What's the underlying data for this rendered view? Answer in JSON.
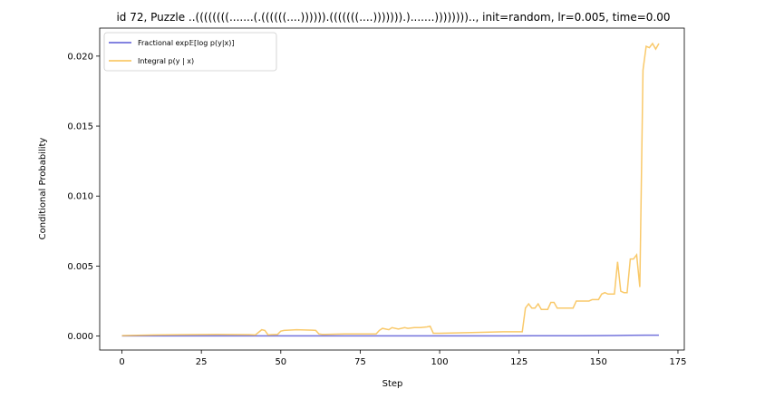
{
  "chart_data": {
    "type": "line",
    "title": "id 72, Puzzle ..((((((((.......(.((((((....)))))).(((((((....))))))).).......))))))))..,  init=random, lr=0.005, time=0.00",
    "xlabel": "Step",
    "ylabel": "Conditional Probability",
    "xlim": [
      -7,
      177
    ],
    "ylim": [
      -0.001,
      0.022
    ],
    "xticks": [
      0,
      25,
      50,
      75,
      100,
      125,
      150,
      175
    ],
    "yticks": [
      0.0,
      0.005,
      0.01,
      0.015,
      0.02
    ],
    "xtick_labels": [
      "0",
      "25",
      "50",
      "75",
      "100",
      "125",
      "150",
      "175"
    ],
    "ytick_labels": [
      "0.000",
      "0.005",
      "0.010",
      "0.015",
      "0.020"
    ],
    "legend_position": "top-left",
    "series": [
      {
        "name": "Fractional exp𝔼[log p(y|x)]",
        "color": "#5a5ad6",
        "x": [
          0,
          10,
          20,
          30,
          40,
          50,
          60,
          70,
          80,
          90,
          100,
          110,
          120,
          130,
          140,
          150,
          155,
          160,
          165,
          169
        ],
        "y": [
          1e-05,
          1e-05,
          1e-05,
          1e-05,
          1e-05,
          1e-05,
          1e-05,
          1e-05,
          1e-05,
          1e-05,
          1e-05,
          1e-05,
          1e-05,
          2e-05,
          2e-05,
          3e-05,
          4e-05,
          5e-05,
          6e-05,
          6e-05
        ]
      },
      {
        "name": "Integral p(y | x)",
        "color": "#f8c050",
        "x": [
          0,
          10,
          20,
          30,
          40,
          42,
          44,
          45,
          46,
          47,
          49,
          50,
          51,
          55,
          60,
          61,
          62,
          63,
          64,
          70,
          80,
          81,
          82,
          84,
          85,
          87,
          89,
          90,
          92,
          94,
          96,
          97,
          98,
          99,
          100,
          110,
          120,
          126,
          127,
          128,
          129,
          130,
          131,
          132,
          133,
          134,
          135,
          136,
          137,
          138,
          140,
          142,
          143,
          145,
          147,
          148,
          149,
          150,
          151,
          152,
          153,
          154,
          155,
          156,
          157,
          158,
          159,
          160,
          161,
          162,
          163,
          164,
          165,
          166,
          167,
          168,
          169
        ],
        "y": [
          3e-05,
          8e-05,
          0.0001,
          0.00012,
          0.0001,
          8e-05,
          0.00045,
          0.0004,
          8e-05,
          0.0001,
          0.00012,
          0.00035,
          0.0004,
          0.00045,
          0.00042,
          0.0004,
          0.00015,
          0.00012,
          0.00012,
          0.00015,
          0.00015,
          0.0004,
          0.00055,
          0.00045,
          0.0006,
          0.0005,
          0.0006,
          0.00055,
          0.0006,
          0.0006,
          0.00065,
          0.0007,
          0.0002,
          0.0002,
          0.0002,
          0.00025,
          0.0003,
          0.0003,
          0.002,
          0.0023,
          0.002,
          0.002,
          0.0023,
          0.0019,
          0.0019,
          0.0019,
          0.0024,
          0.0024,
          0.002,
          0.002,
          0.002,
          0.002,
          0.0025,
          0.0025,
          0.0025,
          0.0026,
          0.0026,
          0.0026,
          0.003,
          0.0031,
          0.003,
          0.003,
          0.003,
          0.0053,
          0.0032,
          0.0031,
          0.0031,
          0.0055,
          0.0055,
          0.0058,
          0.0035,
          0.019,
          0.0207,
          0.0206,
          0.0209,
          0.0205,
          0.0209
        ]
      }
    ]
  }
}
